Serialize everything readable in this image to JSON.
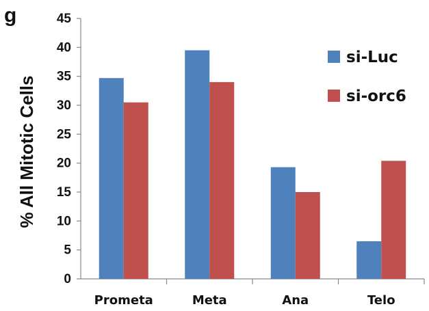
{
  "panel_label": "g",
  "chart_data": {
    "type": "bar",
    "title": "",
    "xlabel": "",
    "ylabel": "% All Mitotic Cells",
    "categories": [
      "Prometa",
      "Meta",
      "Ana",
      "Telo"
    ],
    "series": [
      {
        "name": "si-Luc",
        "color": "#4F81BD",
        "values": [
          34.7,
          39.5,
          19.3,
          6.5
        ]
      },
      {
        "name": "si-orc6",
        "color": "#C0504D",
        "values": [
          30.5,
          34.0,
          15.0,
          20.4
        ]
      }
    ],
    "ylim": [
      0,
      45
    ],
    "yticks": [
      0,
      5,
      10,
      15,
      20,
      25,
      30,
      35,
      40,
      45
    ],
    "grid": false,
    "legend_position": "top-right"
  }
}
